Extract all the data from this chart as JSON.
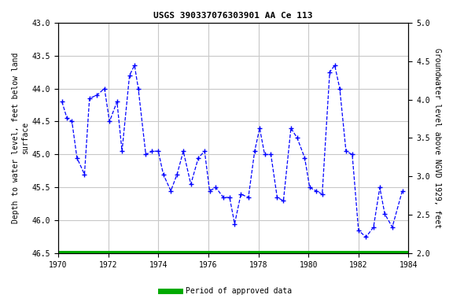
{
  "title": "USGS 390337076303901 AA Ce 113",
  "ylabel_left": "Depth to water level, feet below land\nsurface",
  "ylabel_right": "Groundwater level above NGVD 1929, feet",
  "xlim": [
    1970,
    1984
  ],
  "ylim_left": [
    43.0,
    46.5
  ],
  "xticks": [
    1970,
    1972,
    1974,
    1976,
    1978,
    1980,
    1982,
    1984
  ],
  "yticks_left": [
    43.0,
    43.5,
    44.0,
    44.5,
    45.0,
    45.5,
    46.0,
    46.5
  ],
  "yticks_right": [
    2.0,
    2.5,
    3.0,
    3.5,
    4.0,
    4.5,
    5.0
  ],
  "right_axis_top": 5.0,
  "right_axis_bottom": 2.0,
  "left_axis_top": 43.0,
  "left_axis_bottom": 46.5,
  "line_color": "#0000ff",
  "marker": "+",
  "marker_size": 5,
  "background_color": "#ffffff",
  "grid_color": "#c8c8c8",
  "green_bar_color": "#00aa00",
  "legend_label": "Period of approved data",
  "x_data": [
    1970.15,
    1970.35,
    1970.55,
    1970.75,
    1971.05,
    1971.25,
    1971.55,
    1971.85,
    1972.05,
    1972.35,
    1972.55,
    1972.85,
    1973.05,
    1973.2,
    1973.5,
    1973.75,
    1974.0,
    1974.2,
    1974.5,
    1974.75,
    1975.0,
    1975.3,
    1975.6,
    1975.85,
    1976.05,
    1976.3,
    1976.6,
    1976.85,
    1977.05,
    1977.3,
    1977.6,
    1977.85,
    1978.05,
    1978.25,
    1978.5,
    1978.75,
    1979.0,
    1979.3,
    1979.55,
    1979.85,
    1980.05,
    1980.3,
    1980.55,
    1980.85,
    1981.05,
    1981.25,
    1981.5,
    1981.75,
    1982.0,
    1982.3,
    1982.6,
    1982.85,
    1983.05,
    1983.35,
    1983.75
  ],
  "y_data": [
    44.2,
    44.45,
    44.5,
    45.05,
    45.3,
    44.15,
    44.1,
    44.0,
    44.5,
    44.2,
    44.95,
    43.8,
    43.65,
    44.0,
    45.0,
    44.95,
    44.95,
    45.3,
    45.55,
    45.3,
    44.95,
    45.45,
    45.05,
    44.95,
    45.55,
    45.5,
    45.65,
    45.65,
    46.05,
    45.6,
    45.65,
    44.95,
    44.6,
    45.0,
    45.0,
    45.65,
    45.7,
    44.6,
    44.75,
    45.05,
    45.5,
    45.55,
    45.6,
    43.75,
    43.65,
    44.0,
    44.95,
    45.0,
    46.15,
    46.25,
    46.1,
    45.5,
    45.9,
    46.1,
    45.55
  ]
}
